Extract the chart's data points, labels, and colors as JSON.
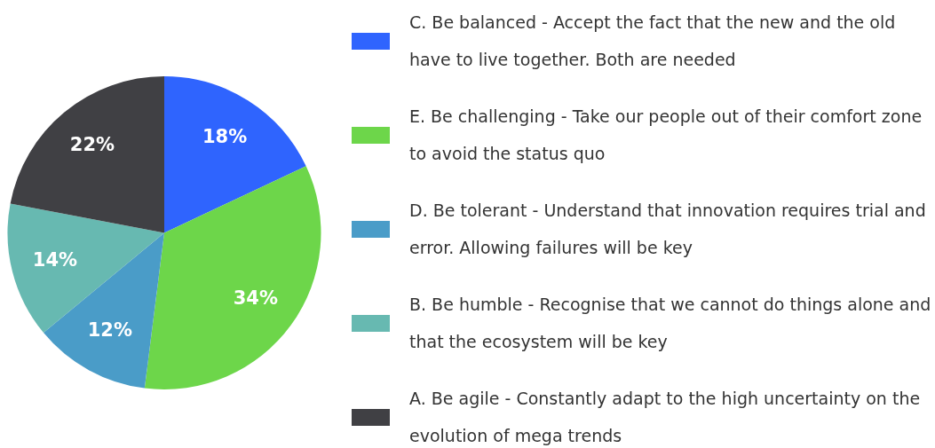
{
  "chart_data": {
    "type": "pie",
    "categories": [
      "C. Be balanced - Accept the fact that the new and the old have to live together. Both are needed",
      "E. Be challenging - Take our people out of their comfort zone to avoid the status quo",
      "D. Be tolerant - Understand that innovation requires trial and error. Allowing failures will be key",
      "B. Be humble - Recognise that we cannot do things alone and that the ecosystem will be key",
      "A. Be agile - Constantly adapt to the high uncertainty on the evolution of mega trends"
    ],
    "values": [
      18,
      34,
      12,
      14,
      22
    ],
    "colors": [
      "#2f64fe",
      "#6dd64a",
      "#4a9cc8",
      "#67b9b1",
      "#404044"
    ],
    "value_labels": [
      "18%",
      "34%",
      "12%",
      "14%",
      "22%"
    ],
    "legend": "right"
  }
}
